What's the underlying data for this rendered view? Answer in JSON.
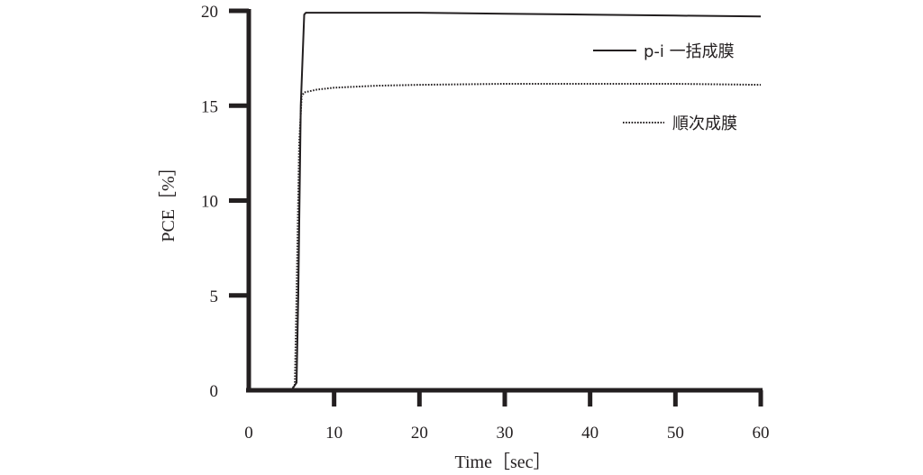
{
  "chart_data": {
    "type": "line",
    "xlabel": "Time［sec］",
    "ylabel": "PCE［%］",
    "xlim": [
      0,
      60
    ],
    "ylim": [
      0,
      20
    ],
    "xticks": [
      0,
      10,
      20,
      30,
      40,
      50,
      60
    ],
    "yticks": [
      0,
      5,
      10,
      15,
      20
    ],
    "grid": false,
    "legend_position": "right",
    "series": [
      {
        "name": "p-i 一括成膜",
        "style": "solid",
        "color": "#231f20",
        "x": [
          5.0,
          5.6,
          5.8,
          6.1,
          6.5,
          6.7,
          10,
          20,
          30,
          40,
          50,
          60
        ],
        "y": [
          0.0,
          0.4,
          5.0,
          15.0,
          19.8,
          19.9,
          19.9,
          19.9,
          19.85,
          19.8,
          19.75,
          19.7
        ]
      },
      {
        "name": "順次成膜",
        "style": "dotted",
        "color": "#231f20",
        "x": [
          5.0,
          5.4,
          5.6,
          5.9,
          6.2,
          6.5,
          8,
          10,
          15,
          20,
          30,
          40,
          50,
          60
        ],
        "y": [
          0.0,
          0.3,
          5.0,
          13.0,
          15.5,
          15.7,
          15.85,
          15.95,
          16.05,
          16.1,
          16.15,
          16.15,
          16.15,
          16.1
        ]
      }
    ]
  }
}
